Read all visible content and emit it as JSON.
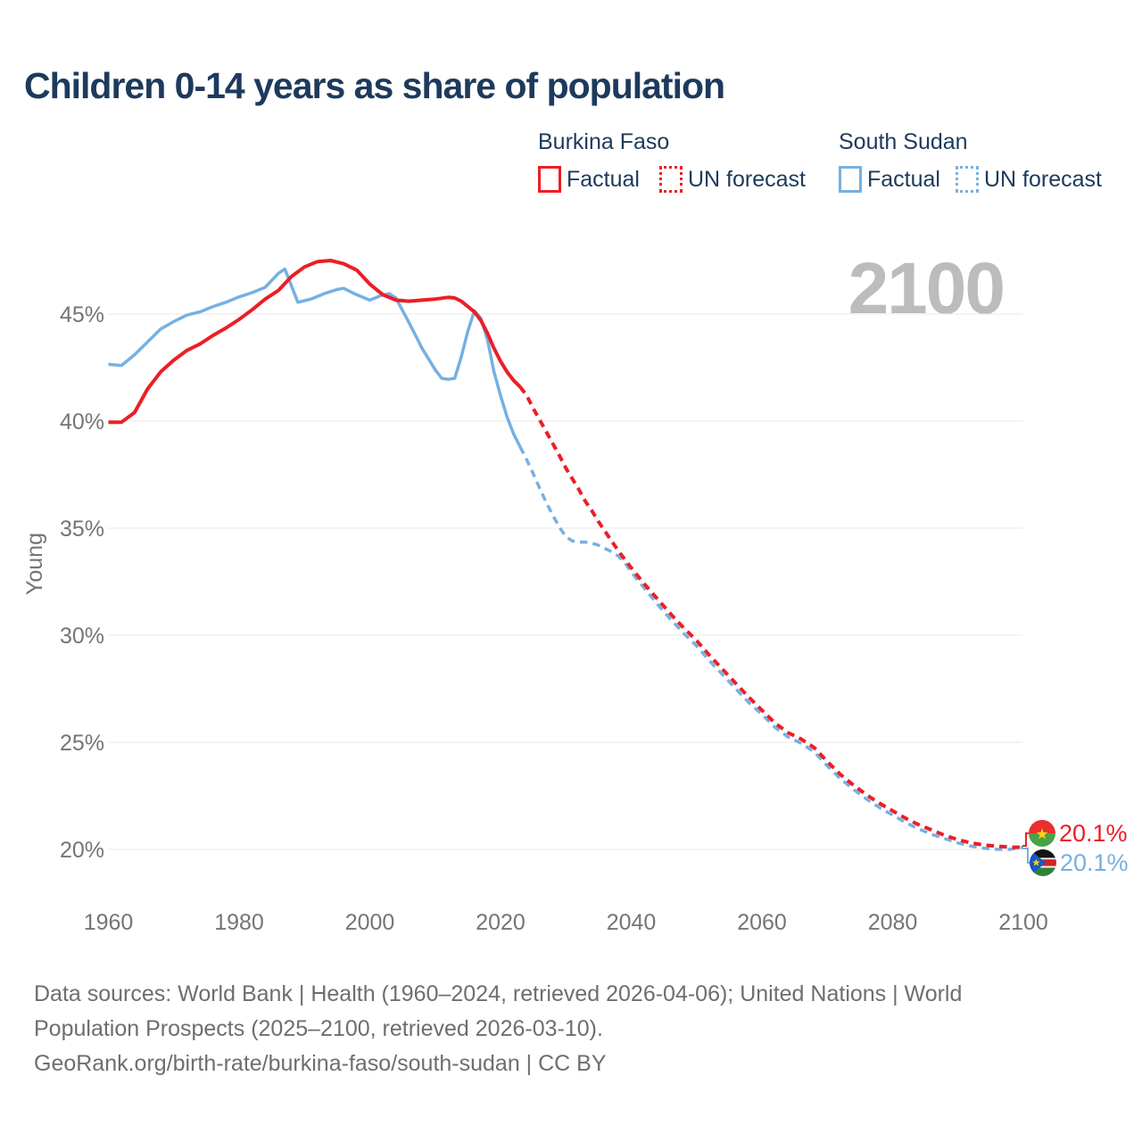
{
  "title": "Children 0-14 years as share of population",
  "watermark": "2100",
  "legend": {
    "groups": [
      {
        "country": "Burkina Faso",
        "color": "#ec1e26",
        "items": [
          {
            "label": "Factual",
            "style": "solid"
          },
          {
            "label": "UN forecast",
            "style": "dotted"
          }
        ]
      },
      {
        "country": "South Sudan",
        "color": "#76b0e2",
        "items": [
          {
            "label": "Factual",
            "style": "solid"
          },
          {
            "label": "UN forecast",
            "style": "dotted"
          }
        ]
      }
    ]
  },
  "end_labels": [
    {
      "series": "Burkina Faso",
      "value": "20.1%",
      "flag": "burkina-faso",
      "color": "#ec1e26"
    },
    {
      "series": "South Sudan",
      "value": "20.1%",
      "flag": "south-sudan",
      "color": "#76b0e2"
    }
  ],
  "footer": {
    "line1": "Data sources: World Bank | Health (1960–2024, retrieved 2026-04-06); United Nations | World",
    "line2": "Population Prospects (2025–2100, retrieved 2026-03-10).",
    "line3": "GeoRank.org/birth-rate/burkina-faso/south-sudan | CC BY"
  },
  "colors": {
    "red": "#ec1e26",
    "blue": "#76b0e2",
    "navy": "#1d3a5c",
    "axis_text": "#757575",
    "footer_text": "#6e6e6e",
    "watermark": "#bcbcbc",
    "gridline": "#e8e8e8"
  },
  "chart_data": {
    "type": "line",
    "title": "Children 0-14 years as share of population",
    "xlabel": "",
    "ylabel": "Young",
    "x_range": [
      1960,
      2100
    ],
    "ylim_pct": [
      19,
      48.5
    ],
    "grid": "horizontal",
    "legend_position": "top-right",
    "yticks": [
      {
        "label": "45%",
        "value": 45
      },
      {
        "label": "40%",
        "value": 40
      },
      {
        "label": "35%",
        "value": 35
      },
      {
        "label": "30%",
        "value": 30
      },
      {
        "label": "25%",
        "value": 25
      },
      {
        "label": "20%",
        "value": 20
      }
    ],
    "xticks": [
      1960,
      1980,
      2000,
      2020,
      2040,
      2060,
      2080,
      2100
    ],
    "series": [
      {
        "name": "South Sudan — Factual",
        "color": "#76b0e2",
        "dash": false,
        "width": 3.5,
        "points": [
          [
            1960,
            42.65
          ],
          [
            1962,
            42.6
          ],
          [
            1964,
            43.1
          ],
          [
            1966,
            43.7
          ],
          [
            1968,
            44.3
          ],
          [
            1970,
            44.65
          ],
          [
            1972,
            44.95
          ],
          [
            1974,
            45.1
          ],
          [
            1976,
            45.35
          ],
          [
            1978,
            45.55
          ],
          [
            1980,
            45.8
          ],
          [
            1982,
            46.0
          ],
          [
            1984,
            46.25
          ],
          [
            1986,
            46.9
          ],
          [
            1987,
            47.1
          ],
          [
            1989,
            45.55
          ],
          [
            1991,
            45.7
          ],
          [
            1993,
            45.95
          ],
          [
            1995,
            46.15
          ],
          [
            1996,
            46.2
          ],
          [
            1998,
            45.9
          ],
          [
            2000,
            45.65
          ],
          [
            2002,
            45.9
          ],
          [
            2003,
            45.95
          ],
          [
            2004,
            45.75
          ],
          [
            2006,
            44.6
          ],
          [
            2008,
            43.4
          ],
          [
            2010,
            42.4
          ],
          [
            2011,
            42.0
          ],
          [
            2012,
            41.95
          ],
          [
            2013,
            42.0
          ],
          [
            2014,
            43.0
          ],
          [
            2015,
            44.2
          ],
          [
            2016,
            45.15
          ],
          [
            2017,
            44.8
          ],
          [
            2018,
            43.8
          ],
          [
            2019,
            42.3
          ],
          [
            2020,
            41.2
          ],
          [
            2021,
            40.2
          ],
          [
            2022,
            39.4
          ],
          [
            2023,
            38.8
          ]
        ]
      },
      {
        "name": "South Sudan — UN forecast",
        "color": "#76b0e2",
        "dash": true,
        "width": 3.5,
        "points": [
          [
            2023,
            38.8
          ],
          [
            2024,
            38.2
          ],
          [
            2025,
            37.55
          ],
          [
            2026,
            36.85
          ],
          [
            2027,
            36.2
          ],
          [
            2028,
            35.6
          ],
          [
            2029,
            35.05
          ],
          [
            2030,
            34.6
          ],
          [
            2031,
            34.4
          ],
          [
            2032,
            34.35
          ],
          [
            2033,
            34.35
          ],
          [
            2034,
            34.3
          ],
          [
            2035,
            34.2
          ],
          [
            2036,
            34.05
          ],
          [
            2037,
            33.9
          ],
          [
            2038,
            33.7
          ],
          [
            2039,
            33.4
          ],
          [
            2040,
            32.95
          ],
          [
            2042,
            32.2
          ],
          [
            2044,
            31.45
          ],
          [
            2046,
            30.75
          ],
          [
            2048,
            30.1
          ],
          [
            2050,
            29.5
          ],
          [
            2052,
            28.8
          ],
          [
            2054,
            28.15
          ],
          [
            2056,
            27.5
          ],
          [
            2058,
            26.85
          ],
          [
            2060,
            26.3
          ],
          [
            2062,
            25.7
          ],
          [
            2064,
            25.25
          ],
          [
            2066,
            24.95
          ],
          [
            2068,
            24.55
          ],
          [
            2070,
            23.9
          ],
          [
            2072,
            23.3
          ],
          [
            2074,
            22.8
          ],
          [
            2076,
            22.35
          ],
          [
            2078,
            21.95
          ],
          [
            2080,
            21.6
          ],
          [
            2082,
            21.25
          ],
          [
            2084,
            20.95
          ],
          [
            2086,
            20.7
          ],
          [
            2088,
            20.5
          ],
          [
            2090,
            20.3
          ],
          [
            2092,
            20.15
          ],
          [
            2094,
            20.05
          ],
          [
            2096,
            20.0
          ],
          [
            2098,
            20.0
          ],
          [
            2100,
            20.1
          ]
        ]
      },
      {
        "name": "Burkina Faso — Factual",
        "color": "#ec1e26",
        "dash": false,
        "width": 4,
        "points": [
          [
            1960,
            39.95
          ],
          [
            1962,
            39.95
          ],
          [
            1964,
            40.4
          ],
          [
            1966,
            41.5
          ],
          [
            1968,
            42.3
          ],
          [
            1970,
            42.85
          ],
          [
            1972,
            43.3
          ],
          [
            1974,
            43.6
          ],
          [
            1976,
            44.0
          ],
          [
            1978,
            44.35
          ],
          [
            1980,
            44.75
          ],
          [
            1982,
            45.2
          ],
          [
            1984,
            45.7
          ],
          [
            1986,
            46.1
          ],
          [
            1988,
            46.75
          ],
          [
            1990,
            47.2
          ],
          [
            1992,
            47.45
          ],
          [
            1994,
            47.5
          ],
          [
            1996,
            47.35
          ],
          [
            1998,
            47.05
          ],
          [
            2000,
            46.4
          ],
          [
            2002,
            45.9
          ],
          [
            2004,
            45.65
          ],
          [
            2006,
            45.6
          ],
          [
            2008,
            45.65
          ],
          [
            2010,
            45.7
          ],
          [
            2012,
            45.78
          ],
          [
            2013,
            45.75
          ],
          [
            2014,
            45.6
          ],
          [
            2016,
            45.1
          ],
          [
            2017,
            44.7
          ],
          [
            2018,
            44.1
          ],
          [
            2019,
            43.4
          ],
          [
            2020,
            42.8
          ],
          [
            2021,
            42.3
          ],
          [
            2022,
            41.9
          ],
          [
            2023,
            41.6
          ]
        ]
      },
      {
        "name": "Burkina Faso — UN forecast",
        "color": "#ec1e26",
        "dash": true,
        "width": 4,
        "points": [
          [
            2023,
            41.6
          ],
          [
            2024,
            41.2
          ],
          [
            2025,
            40.6
          ],
          [
            2026,
            40.05
          ],
          [
            2027,
            39.5
          ],
          [
            2028,
            38.95
          ],
          [
            2029,
            38.4
          ],
          [
            2030,
            37.8
          ],
          [
            2031,
            37.3
          ],
          [
            2032,
            36.8
          ],
          [
            2033,
            36.25
          ],
          [
            2034,
            35.8
          ],
          [
            2035,
            35.3
          ],
          [
            2036,
            34.85
          ],
          [
            2037,
            34.4
          ],
          [
            2038,
            33.95
          ],
          [
            2039,
            33.55
          ],
          [
            2040,
            33.15
          ],
          [
            2042,
            32.4
          ],
          [
            2044,
            31.7
          ],
          [
            2046,
            31.0
          ],
          [
            2048,
            30.35
          ],
          [
            2050,
            29.75
          ],
          [
            2052,
            29.05
          ],
          [
            2054,
            28.4
          ],
          [
            2056,
            27.75
          ],
          [
            2058,
            27.1
          ],
          [
            2060,
            26.5
          ],
          [
            2062,
            25.9
          ],
          [
            2064,
            25.45
          ],
          [
            2066,
            25.15
          ],
          [
            2068,
            24.75
          ],
          [
            2070,
            24.1
          ],
          [
            2072,
            23.5
          ],
          [
            2074,
            23.0
          ],
          [
            2076,
            22.55
          ],
          [
            2078,
            22.15
          ],
          [
            2080,
            21.8
          ],
          [
            2082,
            21.45
          ],
          [
            2084,
            21.15
          ],
          [
            2086,
            20.9
          ],
          [
            2088,
            20.65
          ],
          [
            2090,
            20.45
          ],
          [
            2092,
            20.3
          ],
          [
            2094,
            20.2
          ],
          [
            2096,
            20.15
          ],
          [
            2098,
            20.1
          ],
          [
            2100,
            20.1
          ]
        ]
      }
    ]
  }
}
